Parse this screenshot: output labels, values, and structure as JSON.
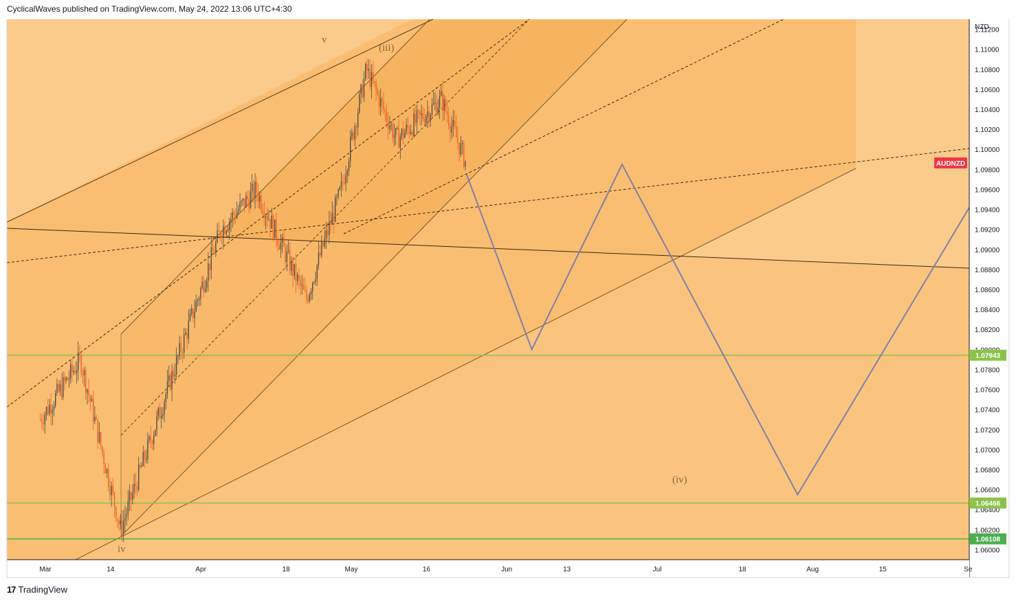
{
  "header": {
    "publisher_line": "CyclicalWaves published on TradingView.com, May 24, 2022 13:06 UTC+4:30"
  },
  "footer": {
    "brand": "TradingView",
    "logo_glyph": "17"
  },
  "chart_data": {
    "type": "candlestick",
    "symbol": "AUDNZD",
    "currency": "NZD",
    "ylim": [
      1.059,
      1.113
    ],
    "y_ticks": [
      "1.11200",
      "1.11000",
      "1.10800",
      "1.10600",
      "1.10400",
      "1.10200",
      "1.10000",
      "1.09800",
      "1.09600",
      "1.09400",
      "1.09200",
      "1.09000",
      "1.08800",
      "1.08600",
      "1.08400",
      "1.08200",
      "1.08000",
      "1.07800",
      "1.07600",
      "1.07400",
      "1.07200",
      "1.07000",
      "1.06800",
      "1.06600",
      "1.06400",
      "1.06200",
      "1.06000"
    ],
    "x_ticks": [
      "Mar",
      "14",
      "Apr",
      "18",
      "May",
      "16",
      "Jun",
      "13",
      "Jul",
      "18",
      "Aug",
      "15",
      "Se"
    ],
    "horizontal_levels": [
      {
        "price": "1.07943",
        "color": "#8bc34a"
      },
      {
        "price": "1.06466",
        "color": "#8bc34a"
      },
      {
        "price": "1.06108",
        "color": "#4caf50"
      }
    ],
    "symbol_badge_color": "#f23645",
    "wave_labels": [
      "v",
      "(iii)",
      "iv",
      "(iv)"
    ],
    "price_path_summary": [
      {
        "date": "2022-02-28",
        "price": 1.073
      },
      {
        "date": "2022-03-08",
        "price": 1.079
      },
      {
        "date": "2022-03-16",
        "price": 1.062
      },
      {
        "date": "2022-04-01",
        "price": 1.086
      },
      {
        "date": "2022-04-05",
        "price": 1.092
      },
      {
        "date": "2022-04-12",
        "price": 1.096
      },
      {
        "date": "2022-04-22",
        "price": 1.085
      },
      {
        "date": "2022-04-29",
        "price": 1.096
      },
      {
        "date": "2022-05-04",
        "price": 1.108
      },
      {
        "date": "2022-05-10",
        "price": 1.101
      },
      {
        "date": "2022-05-19",
        "price": 1.105
      },
      {
        "date": "2022-05-24",
        "price": 1.0985
      }
    ],
    "projection_path": [
      {
        "date": "2022-05-24",
        "price": 1.0975
      },
      {
        "date": "2022-06-06",
        "price": 1.08
      },
      {
        "date": "2022-06-24",
        "price": 1.0985
      },
      {
        "date": "2022-07-29",
        "price": 1.0655
      },
      {
        "date": "2022-09-04",
        "price": 1.0965
      }
    ],
    "colors": {
      "background_zone": "#fbcb8c",
      "mid_zone": "#f9be72",
      "inner_zone": "#f7b35d",
      "up_candle": "#4c4c4c",
      "down_candle": "#ef5f1f",
      "projection": "#8080a8",
      "channel_line": "#7a5a2a"
    }
  }
}
